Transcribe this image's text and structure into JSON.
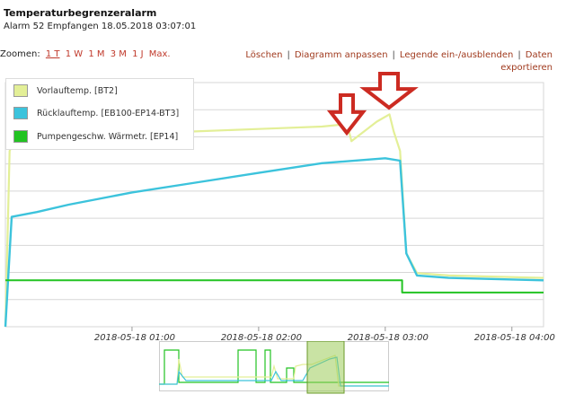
{
  "header": {
    "title": "Temperaturbegrenzeralarm",
    "subtitle": "Alarm 52 Empfangen 18.05.2018 03:07:01"
  },
  "zoom": {
    "label": "Zoomen:",
    "options": [
      "1 T",
      "1 W",
      "1 M",
      "3 M",
      "1 J",
      "Max."
    ],
    "active": "1 T"
  },
  "actions": {
    "delete": "Löschen",
    "adjust": "Diagramm anpassen",
    "legend_toggle": "Legende ein-/ausblenden",
    "export": "Daten exportieren"
  },
  "legend": {
    "items": [
      {
        "label": "Vorlauftemp. [BT2]",
        "color": "#e3ef97"
      },
      {
        "label": "Rücklauftemp. [EB100-EP14-BT3]",
        "color": "#3cc3dc"
      },
      {
        "label": "Pumpengeschw. Wärmetr. [EP14]",
        "color": "#22c322"
      }
    ]
  },
  "colors": {
    "supply": "#e3ef97",
    "return": "#3cc3dc",
    "pump": "#22c322",
    "arrow": "#cc2b22",
    "grid": "#d7d7d7",
    "nav_window": "#9ccc5a"
  },
  "icons": [
    "down-arrow-icon",
    "down-arrow-icon"
  ],
  "chart_data": {
    "type": "line",
    "x_tick_labels": [
      "2018-05-18 01:00",
      "2018-05-18 02:00",
      "2018-05-18 03:00",
      "2018-05-18 04:00"
    ],
    "xlim": [
      "2018-05-18 00:00",
      "2018-05-18 04:15"
    ],
    "grid": true,
    "legend_position": "top-left",
    "series": [
      {
        "name": "Vorlauftemp. [BT2]",
        "points": [
          [
            "2018-05-18 00:00",
            0.0
          ],
          [
            "2018-05-18 00:02",
            0.72
          ],
          [
            "2018-05-18 00:05",
            0.78
          ],
          [
            "2018-05-18 00:20",
            0.79
          ],
          [
            "2018-05-18 01:00",
            0.79
          ],
          [
            "2018-05-18 01:30",
            0.8
          ],
          [
            "2018-05-18 02:00",
            0.81
          ],
          [
            "2018-05-18 02:30",
            0.82
          ],
          [
            "2018-05-18 02:42",
            0.83
          ],
          [
            "2018-05-18 02:44",
            0.76
          ],
          [
            "2018-05-18 02:50",
            0.8
          ],
          [
            "2018-05-18 02:56",
            0.84
          ],
          [
            "2018-05-18 03:02",
            0.87
          ],
          [
            "2018-05-18 03:04",
            0.8
          ],
          [
            "2018-05-18 03:07",
            0.72
          ],
          [
            "2018-05-18 03:10",
            0.3
          ],
          [
            "2018-05-18 03:15",
            0.22
          ],
          [
            "2018-05-18 03:30",
            0.21
          ],
          [
            "2018-05-18 04:15",
            0.2
          ]
        ]
      },
      {
        "name": "Rücklauftemp. [EB100-EP14-BT3]",
        "points": [
          [
            "2018-05-18 00:00",
            0.0
          ],
          [
            "2018-05-18 00:03",
            0.45
          ],
          [
            "2018-05-18 00:15",
            0.47
          ],
          [
            "2018-05-18 00:30",
            0.5
          ],
          [
            "2018-05-18 01:00",
            0.55
          ],
          [
            "2018-05-18 01:30",
            0.59
          ],
          [
            "2018-05-18 02:00",
            0.63
          ],
          [
            "2018-05-18 02:30",
            0.67
          ],
          [
            "2018-05-18 03:00",
            0.69
          ],
          [
            "2018-05-18 03:07",
            0.68
          ],
          [
            "2018-05-18 03:10",
            0.3
          ],
          [
            "2018-05-18 03:15",
            0.21
          ],
          [
            "2018-05-18 03:30",
            0.2
          ],
          [
            "2018-05-18 04:15",
            0.19
          ]
        ]
      },
      {
        "name": "Pumpengeschw. Wärmetr. [EP14]",
        "points": [
          [
            "2018-05-18 00:00",
            0.19
          ],
          [
            "2018-05-18 03:08",
            0.19
          ],
          [
            "2018-05-18 03:08",
            0.14
          ],
          [
            "2018-05-18 04:15",
            0.14
          ]
        ]
      }
    ]
  }
}
